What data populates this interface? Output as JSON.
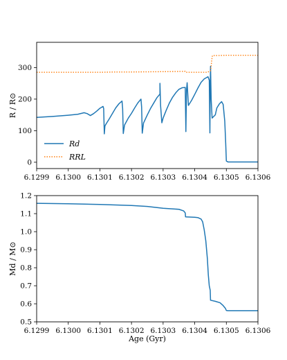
{
  "chart_data": [
    {
      "type": "line",
      "xlabel": "",
      "ylabel": "R / R⊙",
      "xlim": [
        6.1299,
        6.1306
      ],
      "ylim": [
        -20,
        380
      ],
      "x_ticks": [
        "6.1299",
        "6.1300",
        "6.1301",
        "6.1302",
        "6.1303",
        "6.1304",
        "6.1305",
        "6.1306"
      ],
      "y_ticks": [
        0,
        100,
        200,
        300
      ],
      "grid": false,
      "legend": "lower-left",
      "series": [
        {
          "name": "Rd",
          "color": "#1f77b4",
          "style": "solid",
          "points": [
            [
              6.1299,
              142
            ],
            [
              6.12995,
              145
            ],
            [
              6.13,
              149
            ],
            [
              6.13003,
              152
            ],
            [
              6.13005,
              157
            ],
            [
              6.13006,
              154
            ],
            [
              6.13007,
              148
            ],
            [
              6.13008,
              154
            ],
            [
              6.13009,
              162
            ],
            [
              6.1301,
              171
            ],
            [
              6.13011,
              177
            ],
            [
              6.130112,
              170
            ],
            [
              6.130114,
              90
            ],
            [
              6.130116,
              115
            ],
            [
              6.13012,
              122
            ],
            [
              6.13013,
              138
            ],
            [
              6.13014,
              155
            ],
            [
              6.13015,
              172
            ],
            [
              6.13016,
              185
            ],
            [
              6.13017,
              194
            ],
            [
              6.130172,
              170
            ],
            [
              6.130174,
              91
            ],
            [
              6.130178,
              118
            ],
            [
              6.13019,
              140
            ],
            [
              6.1302,
              155
            ],
            [
              6.13021,
              172
            ],
            [
              6.13022,
              188
            ],
            [
              6.13023,
              200
            ],
            [
              6.130232,
              175
            ],
            [
              6.130234,
              92
            ],
            [
              6.130238,
              124
            ],
            [
              6.13025,
              150
            ],
            [
              6.13026,
              170
            ],
            [
              6.13027,
              187
            ],
            [
              6.13028,
              204
            ],
            [
              6.13029,
              216
            ],
            [
              6.13029,
              250
            ],
            [
              6.130292,
              180
            ],
            [
              6.130296,
              125
            ],
            [
              6.1303,
              140
            ],
            [
              6.13031,
              165
            ],
            [
              6.13032,
              188
            ],
            [
              6.13033,
              206
            ],
            [
              6.13034,
              220
            ],
            [
              6.13035,
              231
            ],
            [
              6.13036,
              236
            ],
            [
              6.13037,
              237
            ],
            [
              6.130372,
              97
            ],
            [
              6.130374,
              228
            ],
            [
              6.130376,
              252
            ],
            [
              6.13038,
              180
            ],
            [
              6.13039,
              196
            ],
            [
              6.1304,
              215
            ],
            [
              6.13041,
              235
            ],
            [
              6.13042,
              253
            ],
            [
              6.13043,
              264
            ],
            [
              6.130442,
              271
            ],
            [
              6.130446,
              260
            ],
            [
              6.130448,
              93
            ],
            [
              6.130449,
              245
            ],
            [
              6.13045,
              304
            ],
            [
              6.130452,
              200
            ],
            [
              6.130455,
              140
            ],
            [
              6.130465,
              150
            ],
            [
              6.13047,
              172
            ],
            [
              6.130478,
              185
            ],
            [
              6.130485,
              192
            ],
            [
              6.13049,
              183
            ],
            [
              6.130495,
              130
            ],
            [
              6.130498,
              60
            ],
            [
              6.1305,
              4
            ],
            [
              6.130505,
              1
            ],
            [
              6.1306,
              1
            ]
          ]
        },
        {
          "name": "RRL",
          "color": "#ff7f0e",
          "style": "dotted",
          "points": [
            [
              6.1299,
              285
            ],
            [
              6.1301,
              285
            ],
            [
              6.13015,
              286
            ],
            [
              6.1302,
              286
            ],
            [
              6.1303,
              287
            ],
            [
              6.13037,
              288
            ],
            [
              6.130372,
              285
            ],
            [
              6.13044,
              285
            ],
            [
              6.13045,
              290
            ],
            [
              6.130452,
              305
            ],
            [
              6.130454,
              325
            ],
            [
              6.130456,
              338
            ],
            [
              6.13047,
              338
            ],
            [
              6.1305,
              339
            ],
            [
              6.1306,
              339
            ]
          ]
        }
      ]
    },
    {
      "type": "line",
      "xlabel": "Age (Gyr)",
      "ylabel": "Md / M⊙",
      "xlim": [
        6.1299,
        6.1306
      ],
      "ylim": [
        0.5,
        1.2
      ],
      "x_ticks": [
        "6.1299",
        "6.1300",
        "6.1301",
        "6.1302",
        "6.1303",
        "6.1304",
        "6.1305",
        "6.1306"
      ],
      "y_ticks": [
        "0.5",
        "0.6",
        "0.7",
        "0.8",
        "0.9",
        "1.0",
        "1.1",
        "1.2"
      ],
      "grid": false,
      "series": [
        {
          "name": "",
          "color": "#1f77b4",
          "style": "solid",
          "points": [
            [
              6.1299,
              1.157
            ],
            [
              6.13,
              1.155
            ],
            [
              6.1301,
              1.151
            ],
            [
              6.1302,
              1.145
            ],
            [
              6.13025,
              1.14
            ],
            [
              6.1303,
              1.13
            ],
            [
              6.13035,
              1.124
            ],
            [
              6.130365,
              1.115
            ],
            [
              6.13037,
              1.104
            ],
            [
              6.130371,
              1.082
            ],
            [
              6.1304,
              1.08
            ],
            [
              6.13041,
              1.078
            ],
            [
              6.13042,
              1.07
            ],
            [
              6.130425,
              1.055
            ],
            [
              6.13043,
              1.01
            ],
            [
              6.130435,
              0.95
            ],
            [
              6.13044,
              0.85
            ],
            [
              6.130443,
              0.76
            ],
            [
              6.130446,
              0.7
            ],
            [
              6.130449,
              0.675
            ],
            [
              6.13045,
              0.62
            ],
            [
              6.130465,
              0.614
            ],
            [
              6.13048,
              0.606
            ],
            [
              6.13049,
              0.59
            ],
            [
              6.130497,
              0.575
            ],
            [
              6.1305,
              0.563
            ],
            [
              6.130505,
              0.562
            ],
            [
              6.1306,
              0.562
            ]
          ]
        }
      ]
    }
  ]
}
